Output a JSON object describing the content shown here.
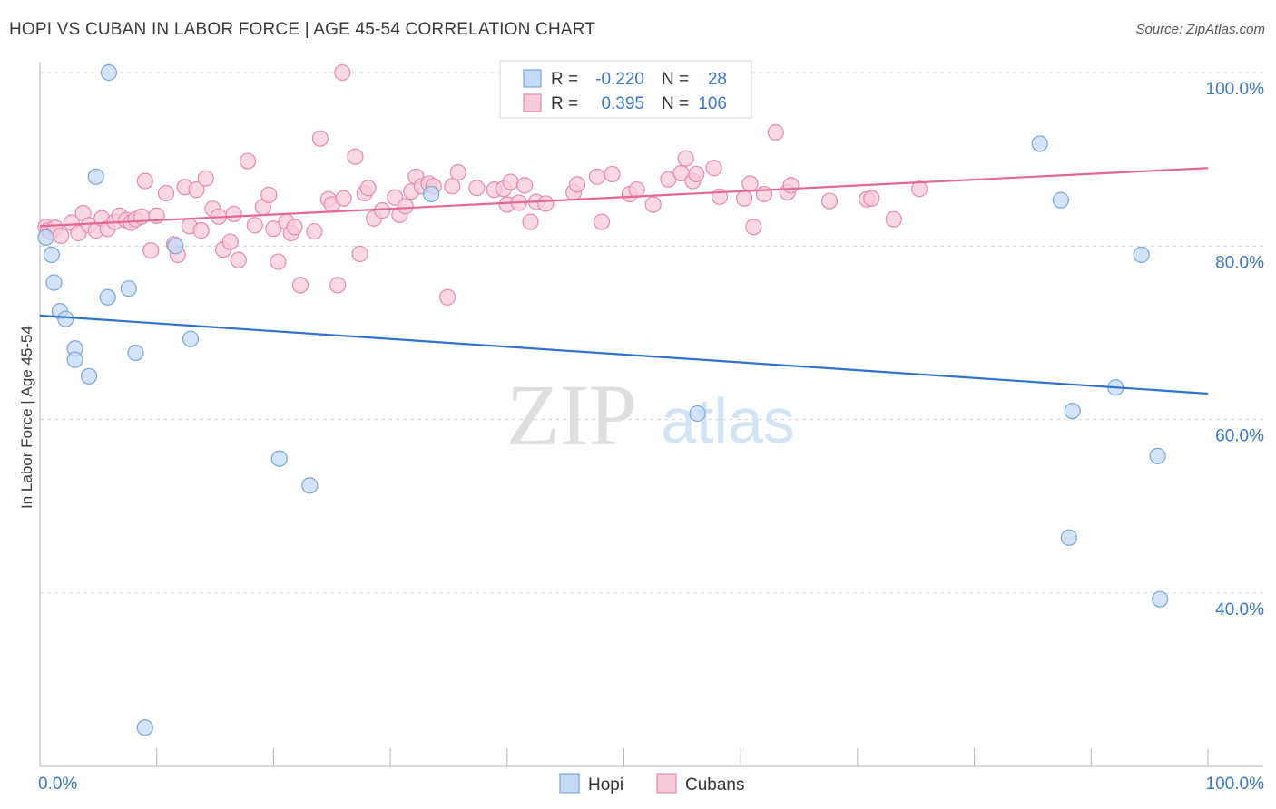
{
  "title": "HOPI VS CUBAN IN LABOR FORCE | AGE 45-54 CORRELATION CHART",
  "source": "Source: ZipAtlas.com",
  "watermark": {
    "zip": "ZIP",
    "atlas": "atlas"
  },
  "colors": {
    "hopi_fill": "#c5daf5",
    "hopi_stroke": "#7aa6de",
    "hopi_line": "#2f72d0",
    "cuban_fill": "#f8cbd9",
    "cuban_stroke": "#e88aaa",
    "cuban_line": "#e5688f",
    "accent_text": "#3a78c9",
    "grid": "#d8d8d8"
  },
  "stats_box": {
    "rows": [
      {
        "series": "hopi",
        "r_label": "R =",
        "r_value": "-0.220",
        "n_label": "N =",
        "n_value": "28"
      },
      {
        "series": "cuban",
        "r_label": "R =",
        "r_value": "0.395",
        "n_label": "N =",
        "n_value": "106"
      }
    ]
  },
  "chart_data": {
    "type": "scatter",
    "title": "HOPI VS CUBAN IN LABOR FORCE | AGE 45-54 CORRELATION CHART",
    "xlabel": "",
    "ylabel": "In Labor Force | Age 45-54",
    "xlim": [
      0,
      100
    ],
    "ylim": [
      21,
      103
    ],
    "x_tick_labels": [
      {
        "value": 0,
        "label": "0.0%"
      },
      {
        "value": 100,
        "label": "100.0%"
      }
    ],
    "y_tick_labels": [
      {
        "value": 100,
        "label": "100.0%"
      },
      {
        "value": 80,
        "label": "80.0%"
      },
      {
        "value": 60,
        "label": "60.0%"
      },
      {
        "value": 40,
        "label": "40.0%"
      }
    ],
    "y_gridlines": [
      100,
      80,
      60,
      40
    ],
    "legend_position": "bottom-center",
    "series": [
      {
        "name": "Hopi",
        "r": -0.22,
        "n": 28,
        "trend": {
          "x0": 0,
          "y0": 72.0,
          "x1": 100,
          "y1": 63.0
        },
        "points": [
          [
            0.5,
            81
          ],
          [
            1.0,
            79
          ],
          [
            1.2,
            75.8
          ],
          [
            1.7,
            72.5
          ],
          [
            2.2,
            71.6
          ],
          [
            3.0,
            68.2
          ],
          [
            3.0,
            66.9
          ],
          [
            4.2,
            65
          ],
          [
            4.8,
            88
          ],
          [
            5.8,
            74.1
          ],
          [
            5.9,
            100
          ],
          [
            7.6,
            75.1
          ],
          [
            8.2,
            67.7
          ],
          [
            9.0,
            24.5
          ],
          [
            11.6,
            80
          ],
          [
            12.9,
            69.3
          ],
          [
            20.5,
            55.5
          ],
          [
            23.1,
            52.4
          ],
          [
            33.5,
            86
          ],
          [
            56.3,
            60.7
          ],
          [
            85.6,
            91.8
          ],
          [
            87.4,
            85.3
          ],
          [
            88.1,
            46.4
          ],
          [
            88.4,
            61
          ],
          [
            92.1,
            63.7
          ],
          [
            94.3,
            79
          ],
          [
            95.7,
            55.8
          ],
          [
            95.9,
            39.3
          ]
        ]
      },
      {
        "name": "Cubans",
        "r": 0.395,
        "n": 106,
        "trend": {
          "x0": 0,
          "y0": 82.3,
          "x1": 100,
          "y1": 89.0
        },
        "points": [
          [
            0.5,
            82.2
          ],
          [
            0.7,
            81.8
          ],
          [
            0.9,
            81.6
          ],
          [
            1.3,
            82.1
          ],
          [
            1.8,
            81.2
          ],
          [
            2.7,
            82.7
          ],
          [
            3.3,
            81.5
          ],
          [
            3.7,
            83.8
          ],
          [
            4.2,
            82.4
          ],
          [
            4.8,
            81.8
          ],
          [
            5.3,
            83.2
          ],
          [
            5.8,
            82
          ],
          [
            6.4,
            82.8
          ],
          [
            6.8,
            83.5
          ],
          [
            7.4,
            83
          ],
          [
            7.8,
            82.7
          ],
          [
            8.2,
            83.1
          ],
          [
            8.7,
            83.4
          ],
          [
            9.0,
            87.5
          ],
          [
            9.5,
            79.5
          ],
          [
            10.0,
            83.5
          ],
          [
            10.8,
            86.1
          ],
          [
            11.5,
            80.2
          ],
          [
            11.8,
            79
          ],
          [
            12.4,
            86.8
          ],
          [
            12.8,
            82.3
          ],
          [
            13.4,
            86.5
          ],
          [
            13.8,
            81.8
          ],
          [
            14.2,
            87.8
          ],
          [
            14.8,
            84.3
          ],
          [
            15.3,
            83.4
          ],
          [
            15.7,
            79.6
          ],
          [
            16.3,
            80.5
          ],
          [
            16.6,
            83.7
          ],
          [
            17.0,
            78.4
          ],
          [
            17.8,
            89.8
          ],
          [
            18.4,
            82.4
          ],
          [
            19.1,
            84.5
          ],
          [
            19.6,
            85.9
          ],
          [
            20.0,
            82
          ],
          [
            20.4,
            78.2
          ],
          [
            21.1,
            82.8
          ],
          [
            21.5,
            81.5
          ],
          [
            21.8,
            82.2
          ],
          [
            22.3,
            75.5
          ],
          [
            23.5,
            81.7
          ],
          [
            24.0,
            92.4
          ],
          [
            24.7,
            85.4
          ],
          [
            25.0,
            84.8
          ],
          [
            25.5,
            75.5
          ],
          [
            26.0,
            85.5
          ],
          [
            27.0,
            90.3
          ],
          [
            27.4,
            79.1
          ],
          [
            27.8,
            86.1
          ],
          [
            28.1,
            86.7
          ],
          [
            28.6,
            83.2
          ],
          [
            29.3,
            84.1
          ],
          [
            30.4,
            85.6
          ],
          [
            30.8,
            83.6
          ],
          [
            31.3,
            84.6
          ],
          [
            31.8,
            86.3
          ],
          [
            32.2,
            88
          ],
          [
            32.7,
            86.9
          ],
          [
            33.3,
            87.2
          ],
          [
            33.7,
            86.9
          ],
          [
            34.9,
            74.1
          ],
          [
            35.3,
            86.9
          ],
          [
            35.8,
            88.5
          ],
          [
            37.4,
            86.7
          ],
          [
            38.9,
            86.5
          ],
          [
            39.7,
            86.6
          ],
          [
            40.0,
            84.8
          ],
          [
            40.3,
            87.4
          ],
          [
            41.0,
            85
          ],
          [
            41.5,
            87
          ],
          [
            42.0,
            82.8
          ],
          [
            42.5,
            85.1
          ],
          [
            43.3,
            84.9
          ],
          [
            45.7,
            86.2
          ],
          [
            46.0,
            87.1
          ],
          [
            47.7,
            88
          ],
          [
            48.1,
            82.8
          ],
          [
            49.0,
            88.3
          ],
          [
            50.5,
            86
          ],
          [
            51.1,
            86.5
          ],
          [
            52.5,
            84.8
          ],
          [
            53.8,
            87.7
          ],
          [
            54.9,
            88.4
          ],
          [
            55.3,
            90.1
          ],
          [
            55.9,
            87.5
          ],
          [
            56.2,
            88.3
          ],
          [
            57.7,
            89
          ],
          [
            58.2,
            85.7
          ],
          [
            60.8,
            87.2
          ],
          [
            60.3,
            85.5
          ],
          [
            61.1,
            82.2
          ],
          [
            62.0,
            86
          ],
          [
            63.0,
            93.1
          ],
          [
            64.0,
            86.2
          ],
          [
            64.3,
            87
          ],
          [
            67.6,
            85.2
          ],
          [
            70.8,
            85.4
          ],
          [
            71.2,
            85.5
          ],
          [
            73.1,
            83.1
          ],
          [
            75.3,
            86.6
          ],
          [
            25.9,
            100
          ]
        ]
      }
    ]
  },
  "legend": {
    "items": [
      {
        "label": "Hopi"
      },
      {
        "label": "Cubans"
      }
    ]
  }
}
